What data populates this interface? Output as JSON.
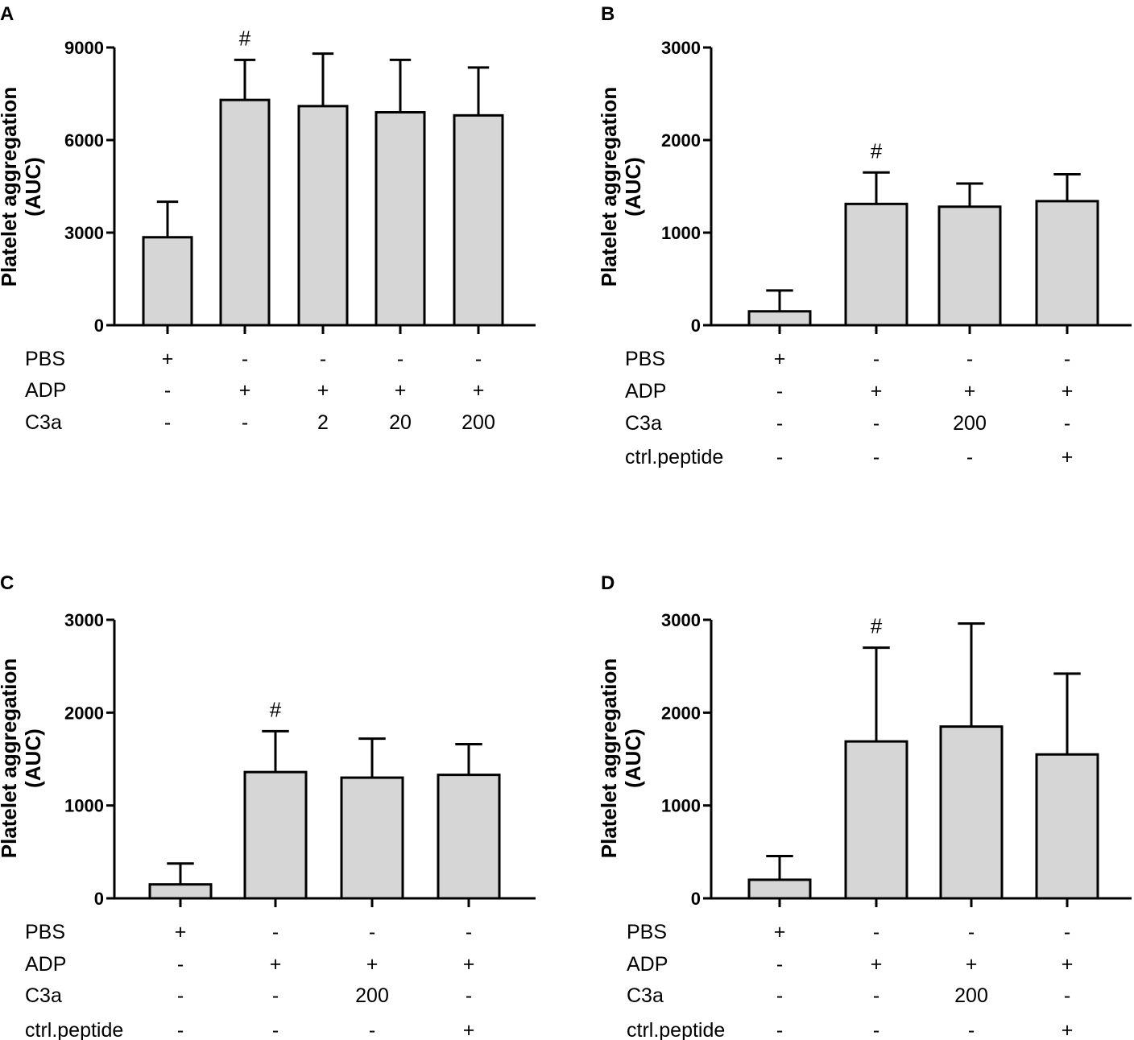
{
  "figure": {
    "bar_fill": "#d6d6d6",
    "stroke": "#000000"
  },
  "chart_data": [
    {
      "type": "bar",
      "panel": "A",
      "ylabel": "Platelet aggregation (AUC)",
      "ylabel_lines": [
        "Platelet aggregation",
        "(AUC)"
      ],
      "ylim": [
        0,
        9000
      ],
      "yticks": [
        0,
        3000,
        6000,
        9000
      ],
      "categories": [
        "1",
        "2",
        "3",
        "4",
        "5"
      ],
      "values": [
        2850,
        7300,
        7100,
        6900,
        6800
      ],
      "errors": [
        1150,
        1300,
        1700,
        1700,
        1550
      ],
      "annotations": [
        "",
        "#",
        "",
        "",
        ""
      ],
      "conditions": [
        {
          "label": "PBS",
          "values": [
            "+",
            "-",
            "-",
            "-",
            "-"
          ]
        },
        {
          "label": "ADP",
          "values": [
            "-",
            "+",
            "+",
            "+",
            "+"
          ]
        },
        {
          "label": "C3a",
          "values": [
            "-",
            "-",
            "2",
            "20",
            "200"
          ]
        }
      ]
    },
    {
      "type": "bar",
      "panel": "B",
      "ylabel": "Platelet aggregation (AUC)",
      "ylabel_lines": [
        "Platelet aggregation",
        "(AUC)"
      ],
      "ylim": [
        0,
        3000
      ],
      "yticks": [
        0,
        1000,
        2000,
        3000
      ],
      "categories": [
        "1",
        "2",
        "3",
        "4"
      ],
      "values": [
        150,
        1310,
        1280,
        1340
      ],
      "errors": [
        225,
        340,
        250,
        290
      ],
      "annotations": [
        "",
        "#",
        "",
        ""
      ],
      "conditions": [
        {
          "label": "PBS",
          "values": [
            "+",
            "-",
            "-",
            "-"
          ]
        },
        {
          "label": "ADP",
          "values": [
            "-",
            "+",
            "+",
            "+"
          ]
        },
        {
          "label": "C3a",
          "values": [
            "-",
            "-",
            "200",
            "-"
          ]
        },
        {
          "label": "ctrl.peptide",
          "values": [
            "-",
            "-",
            "-",
            "+"
          ]
        }
      ]
    },
    {
      "type": "bar",
      "panel": "C",
      "ylabel": "Platelet aggregation (AUC)",
      "ylabel_lines": [
        "Platelet aggregation",
        "(AUC)"
      ],
      "ylim": [
        0,
        3000
      ],
      "yticks": [
        0,
        1000,
        2000,
        3000
      ],
      "categories": [
        "1",
        "2",
        "3",
        "4"
      ],
      "values": [
        150,
        1360,
        1300,
        1330
      ],
      "errors": [
        225,
        440,
        420,
        330
      ],
      "annotations": [
        "",
        "#",
        "",
        ""
      ],
      "conditions": [
        {
          "label": "PBS",
          "values": [
            "+",
            "-",
            "-",
            "-"
          ]
        },
        {
          "label": "ADP",
          "values": [
            "-",
            "+",
            "+",
            "+"
          ]
        },
        {
          "label": "C3a",
          "values": [
            "-",
            "-",
            "200",
            "-"
          ]
        },
        {
          "label": "ctrl.peptide",
          "values": [
            "-",
            "-",
            "-",
            "+"
          ]
        }
      ]
    },
    {
      "type": "bar",
      "panel": "D",
      "ylabel": "Platelet aggregation (AUC)",
      "ylabel_lines": [
        "Platelet aggregation",
        "(AUC)"
      ],
      "ylim": [
        0,
        3000
      ],
      "yticks": [
        0,
        1000,
        2000,
        3000
      ],
      "categories": [
        "1",
        "2",
        "3",
        "4"
      ],
      "values": [
        200,
        1690,
        1850,
        1550
      ],
      "errors": [
        255,
        1010,
        1110,
        870
      ],
      "annotations": [
        "",
        "#",
        "",
        ""
      ],
      "conditions": [
        {
          "label": "PBS",
          "values": [
            "+",
            "-",
            "-",
            "-"
          ]
        },
        {
          "label": "ADP",
          "values": [
            "-",
            "+",
            "+",
            "+"
          ]
        },
        {
          "label": "C3a",
          "values": [
            "-",
            "-",
            "200",
            "-"
          ]
        },
        {
          "label": "ctrl.peptide",
          "values": [
            "-",
            "-",
            "-",
            "+"
          ]
        }
      ]
    }
  ]
}
